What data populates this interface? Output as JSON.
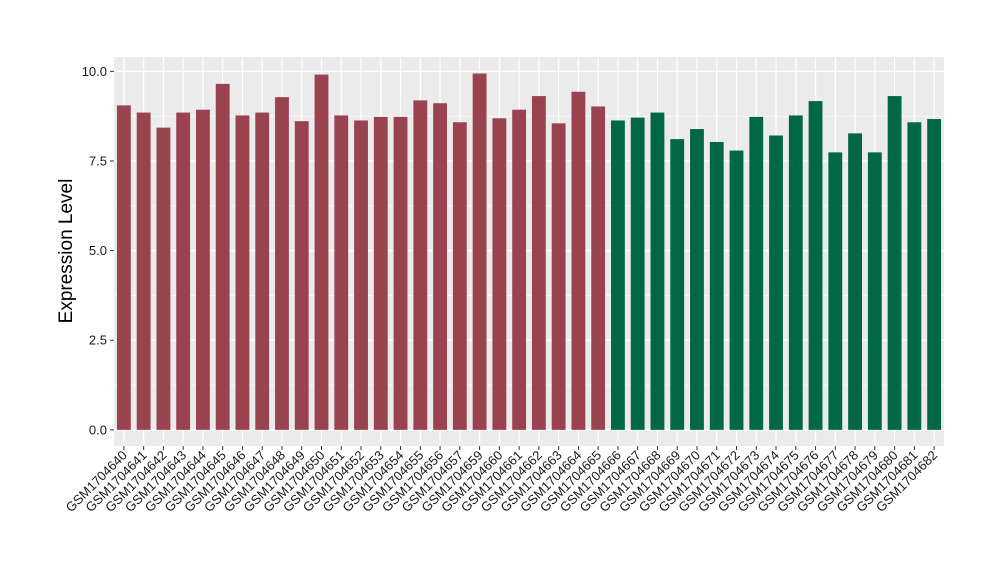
{
  "chart_data": {
    "type": "bar",
    "title": "",
    "xlabel": "",
    "ylabel": "Expression Level",
    "ylim": [
      -0.45,
      10.4
    ],
    "yticks": [
      "0.0",
      "2.5",
      "5.0",
      "7.5",
      "10.0"
    ],
    "ytick_values": [
      0,
      2.5,
      5,
      7.5,
      10
    ],
    "grid": true,
    "legend": "none",
    "colors": {
      "group1": "#9A4350",
      "group2": "#006846",
      "panel": "#EBEBEB",
      "grid": "#FFFFFF"
    },
    "categories": [
      "GSM1704640",
      "GSM1704641",
      "GSM1704642",
      "GSM1704643",
      "GSM1704644",
      "GSM1704645",
      "GSM1704646",
      "GSM1704647",
      "GSM1704648",
      "GSM1704649",
      "GSM1704650",
      "GSM1704651",
      "GSM1704652",
      "GSM1704653",
      "GSM1704654",
      "GSM1704655",
      "GSM1704656",
      "GSM1704657",
      "GSM1704659",
      "GSM1704660",
      "GSM1704661",
      "GSM1704662",
      "GSM1704663",
      "GSM1704664",
      "GSM1704665",
      "GSM1704666",
      "GSM1704667",
      "GSM1704668",
      "GSM1704669",
      "GSM1704670",
      "GSM1704671",
      "GSM1704672",
      "GSM1704673",
      "GSM1704674",
      "GSM1704675",
      "GSM1704676",
      "GSM1704677",
      "GSM1704678",
      "GSM1704679",
      "GSM1704680",
      "GSM1704681",
      "GSM1704682"
    ],
    "values": [
      9.05,
      8.85,
      8.43,
      8.85,
      8.93,
      9.65,
      8.77,
      8.85,
      9.28,
      8.61,
      9.91,
      8.77,
      8.63,
      8.73,
      8.73,
      9.19,
      9.11,
      8.58,
      9.94,
      8.69,
      8.93,
      9.31,
      8.55,
      9.43,
      9.02,
      8.63,
      8.71,
      8.85,
      8.11,
      8.39,
      8.03,
      7.79,
      8.73,
      8.21,
      8.77,
      9.17,
      7.74,
      8.27,
      7.74,
      9.31,
      8.58,
      8.67
    ],
    "groups": [
      1,
      1,
      1,
      1,
      1,
      1,
      1,
      1,
      1,
      1,
      1,
      1,
      1,
      1,
      1,
      1,
      1,
      1,
      1,
      1,
      1,
      1,
      1,
      1,
      1,
      2,
      2,
      2,
      2,
      2,
      2,
      2,
      2,
      2,
      2,
      2,
      2,
      2,
      2,
      2,
      2,
      2
    ]
  }
}
